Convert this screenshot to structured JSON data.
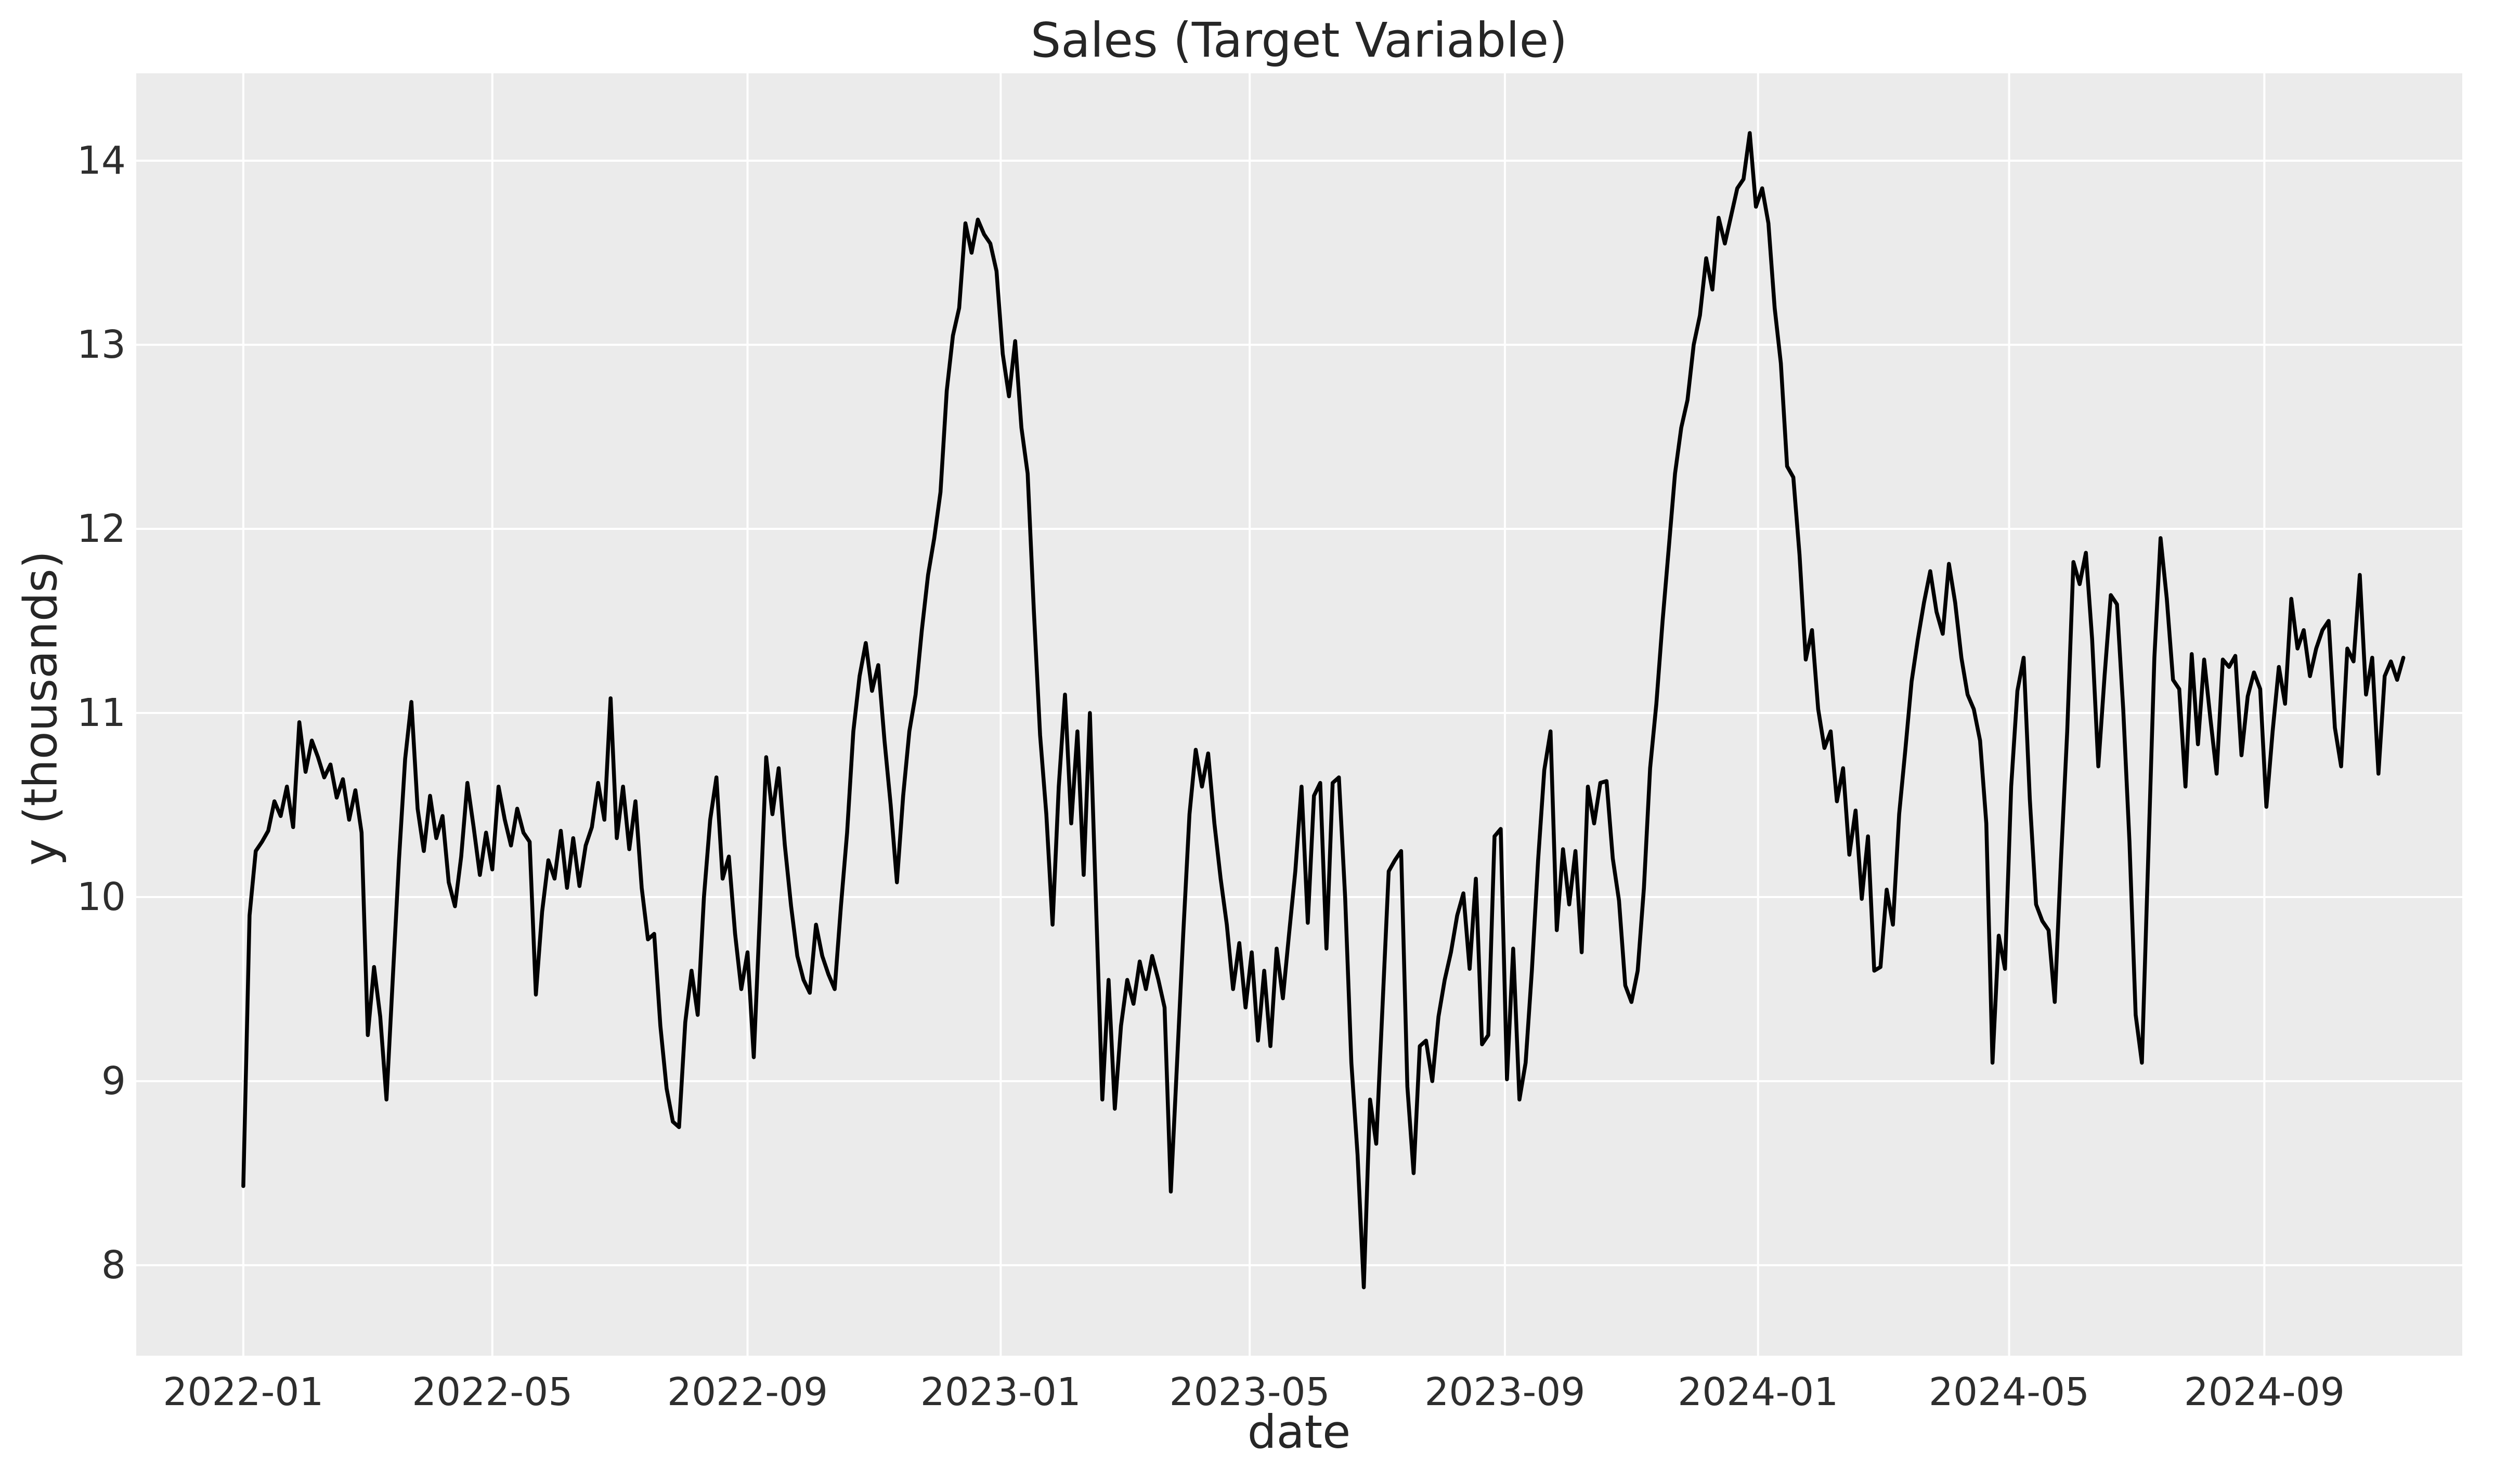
{
  "chart_data": {
    "type": "line",
    "title": "Sales (Target Variable)",
    "xlabel": "date",
    "ylabel": "y (thousands)",
    "legend": "none",
    "grid": "on",
    "colors": {
      "figure_background": "#ffffff",
      "plot_background": "#ebebeb",
      "gridline": "#ffffff",
      "line": "#000000",
      "tick_text": "#2e2e2e",
      "label_text": "#262626"
    },
    "y_ticks": [
      8,
      9,
      10,
      11,
      12,
      13,
      14
    ],
    "x_ticks": [
      {
        "label": "2022-01",
        "day": 0
      },
      {
        "label": "2022-05",
        "day": 120
      },
      {
        "label": "2022-09",
        "day": 243
      },
      {
        "label": "2023-01",
        "day": 365
      },
      {
        "label": "2023-05",
        "day": 485
      },
      {
        "label": "2023-09",
        "day": 608
      },
      {
        "label": "2024-01",
        "day": 730
      },
      {
        "label": "2024-05",
        "day": 851
      },
      {
        "label": "2024-09",
        "day": 974
      }
    ],
    "xlim_days": [
      -51.6,
      1069.4
    ],
    "ylim": [
      7.5085,
      14.4746
    ],
    "x_epoch": "2022-01-01",
    "x_start_day": 0,
    "x_step_days": 3,
    "values": [
      8.43,
      9.9,
      10.25,
      10.3,
      10.36,
      10.52,
      10.44,
      10.6,
      10.38,
      10.95,
      10.68,
      10.85,
      10.76,
      10.65,
      10.72,
      10.54,
      10.64,
      10.42,
      10.58,
      10.35,
      9.25,
      9.62,
      9.35,
      8.9,
      9.55,
      10.2,
      10.75,
      11.06,
      10.48,
      10.25,
      10.55,
      10.32,
      10.44,
      10.08,
      9.95,
      10.22,
      10.62,
      10.38,
      10.12,
      10.35,
      10.15,
      10.6,
      10.42,
      10.28,
      10.48,
      10.35,
      10.3,
      9.47,
      9.92,
      10.2,
      10.1,
      10.36,
      10.05,
      10.32,
      10.06,
      10.28,
      10.38,
      10.62,
      10.42,
      11.08,
      10.32,
      10.6,
      10.26,
      10.52,
      10.05,
      9.77,
      9.8,
      9.3,
      8.96,
      8.78,
      8.75,
      9.32,
      9.6,
      9.36,
      10.0,
      10.42,
      10.65,
      10.1,
      10.22,
      9.8,
      9.5,
      9.7,
      9.13,
      9.92,
      10.76,
      10.45,
      10.7,
      10.28,
      9.95,
      9.68,
      9.55,
      9.48,
      9.85,
      9.68,
      9.58,
      9.5,
      9.95,
      10.35,
      10.9,
      11.2,
      11.38,
      11.12,
      11.26,
      10.85,
      10.5,
      10.08,
      10.55,
      10.9,
      11.1,
      11.45,
      11.75,
      11.95,
      12.2,
      12.75,
      13.05,
      13.2,
      13.66,
      13.5,
      13.68,
      13.6,
      13.55,
      13.4,
      12.95,
      12.72,
      13.02,
      12.55,
      12.3,
      11.55,
      10.88,
      10.45,
      9.85,
      10.6,
      11.1,
      10.4,
      10.9,
      10.12,
      11.0,
      9.94,
      8.9,
      9.55,
      8.85,
      9.3,
      9.55,
      9.42,
      9.65,
      9.5,
      9.68,
      9.55,
      9.4,
      8.4,
      9.1,
      9.8,
      10.45,
      10.8,
      10.6,
      10.78,
      10.4,
      10.1,
      9.85,
      9.5,
      9.75,
      9.4,
      9.7,
      9.22,
      9.6,
      9.19,
      9.72,
      9.45,
      9.8,
      10.14,
      10.6,
      9.86,
      10.55,
      10.62,
      9.72,
      10.62,
      10.65,
      10.0,
      9.1,
      8.6,
      7.88,
      8.9,
      8.66,
      9.4,
      10.14,
      10.2,
      10.25,
      8.97,
      8.5,
      9.19,
      9.22,
      9.0,
      9.35,
      9.55,
      9.7,
      9.9,
      10.02,
      9.61,
      10.1,
      9.2,
      9.25,
      10.33,
      10.37,
      9.01,
      9.72,
      8.9,
      9.1,
      9.6,
      10.2,
      10.69,
      10.9,
      9.82,
      10.26,
      9.96,
      10.25,
      9.7,
      10.6,
      10.4,
      10.62,
      10.63,
      10.21,
      9.98,
      9.52,
      9.43,
      9.6,
      10.05,
      10.7,
      11.05,
      11.5,
      11.9,
      12.3,
      12.55,
      12.7,
      13.0,
      13.16,
      13.47,
      13.3,
      13.69,
      13.55,
      13.7,
      13.85,
      13.9,
      14.15,
      13.75,
      13.85,
      13.66,
      13.2,
      12.9,
      12.34,
      12.28,
      11.86,
      11.29,
      11.45,
      11.02,
      10.81,
      10.9,
      10.52,
      10.7,
      10.23,
      10.47,
      9.99,
      10.33,
      9.6,
      9.62,
      10.04,
      9.85,
      10.45,
      10.8,
      11.17,
      11.4,
      11.6,
      11.77,
      11.55,
      11.43,
      11.81,
      11.6,
      11.3,
      11.1,
      11.02,
      10.85,
      10.4,
      9.1,
      9.79,
      9.61,
      10.6,
      11.12,
      11.3,
      10.53,
      9.96,
      9.87,
      9.82,
      9.43,
      10.2,
      10.9,
      11.82,
      11.7,
      11.87,
      11.4,
      10.71,
      11.2,
      11.64,
      11.59,
      11.02,
      10.3,
      9.36,
      9.1,
      10.2,
      11.3,
      11.95,
      11.62,
      11.18,
      11.13,
      10.6,
      11.32,
      10.83,
      11.29,
      10.97,
      10.67,
      11.29,
      11.25,
      11.31,
      10.77,
      11.09,
      11.22,
      11.13,
      10.49,
      10.9,
      11.25,
      11.05,
      11.62,
      11.35,
      11.45,
      11.2,
      11.35,
      11.45,
      11.5,
      10.92,
      10.71,
      11.35,
      11.28,
      11.75,
      11.1,
      11.3,
      10.67,
      11.2,
      11.28,
      11.18,
      11.3
    ]
  }
}
